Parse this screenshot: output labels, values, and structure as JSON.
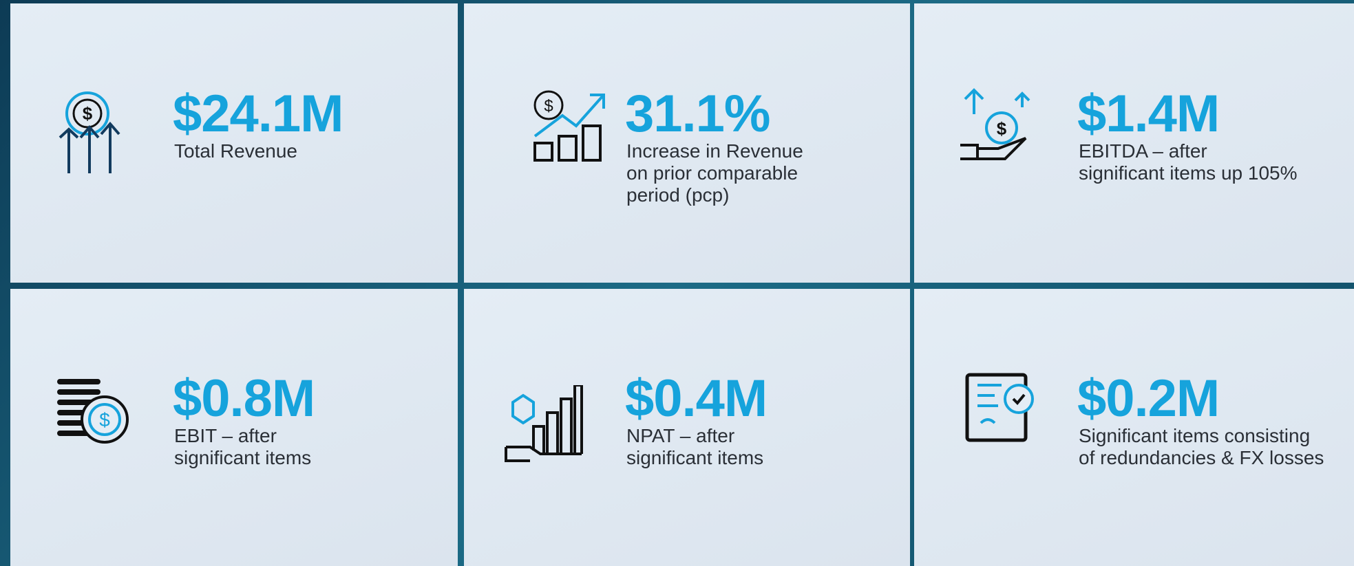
{
  "tiles": [
    {
      "value": "$24.1M",
      "label": [
        "Total Revenue"
      ]
    },
    {
      "value": "31.1%",
      "label": [
        "Increase in Revenue",
        "on prior comparable",
        "period (pcp)"
      ]
    },
    {
      "value": "$1.4M",
      "label": [
        "EBITDA – after",
        "significant items up 105%"
      ]
    },
    {
      "value": "$0.8M",
      "label": [
        "EBIT – after",
        "significant items"
      ]
    },
    {
      "value": "$0.4M",
      "label": [
        "NPAT – after",
        "significant items"
      ]
    },
    {
      "value": "$0.2M",
      "label": [
        "Significant items consisting",
        "of redundancies & FX losses"
      ]
    }
  ]
}
